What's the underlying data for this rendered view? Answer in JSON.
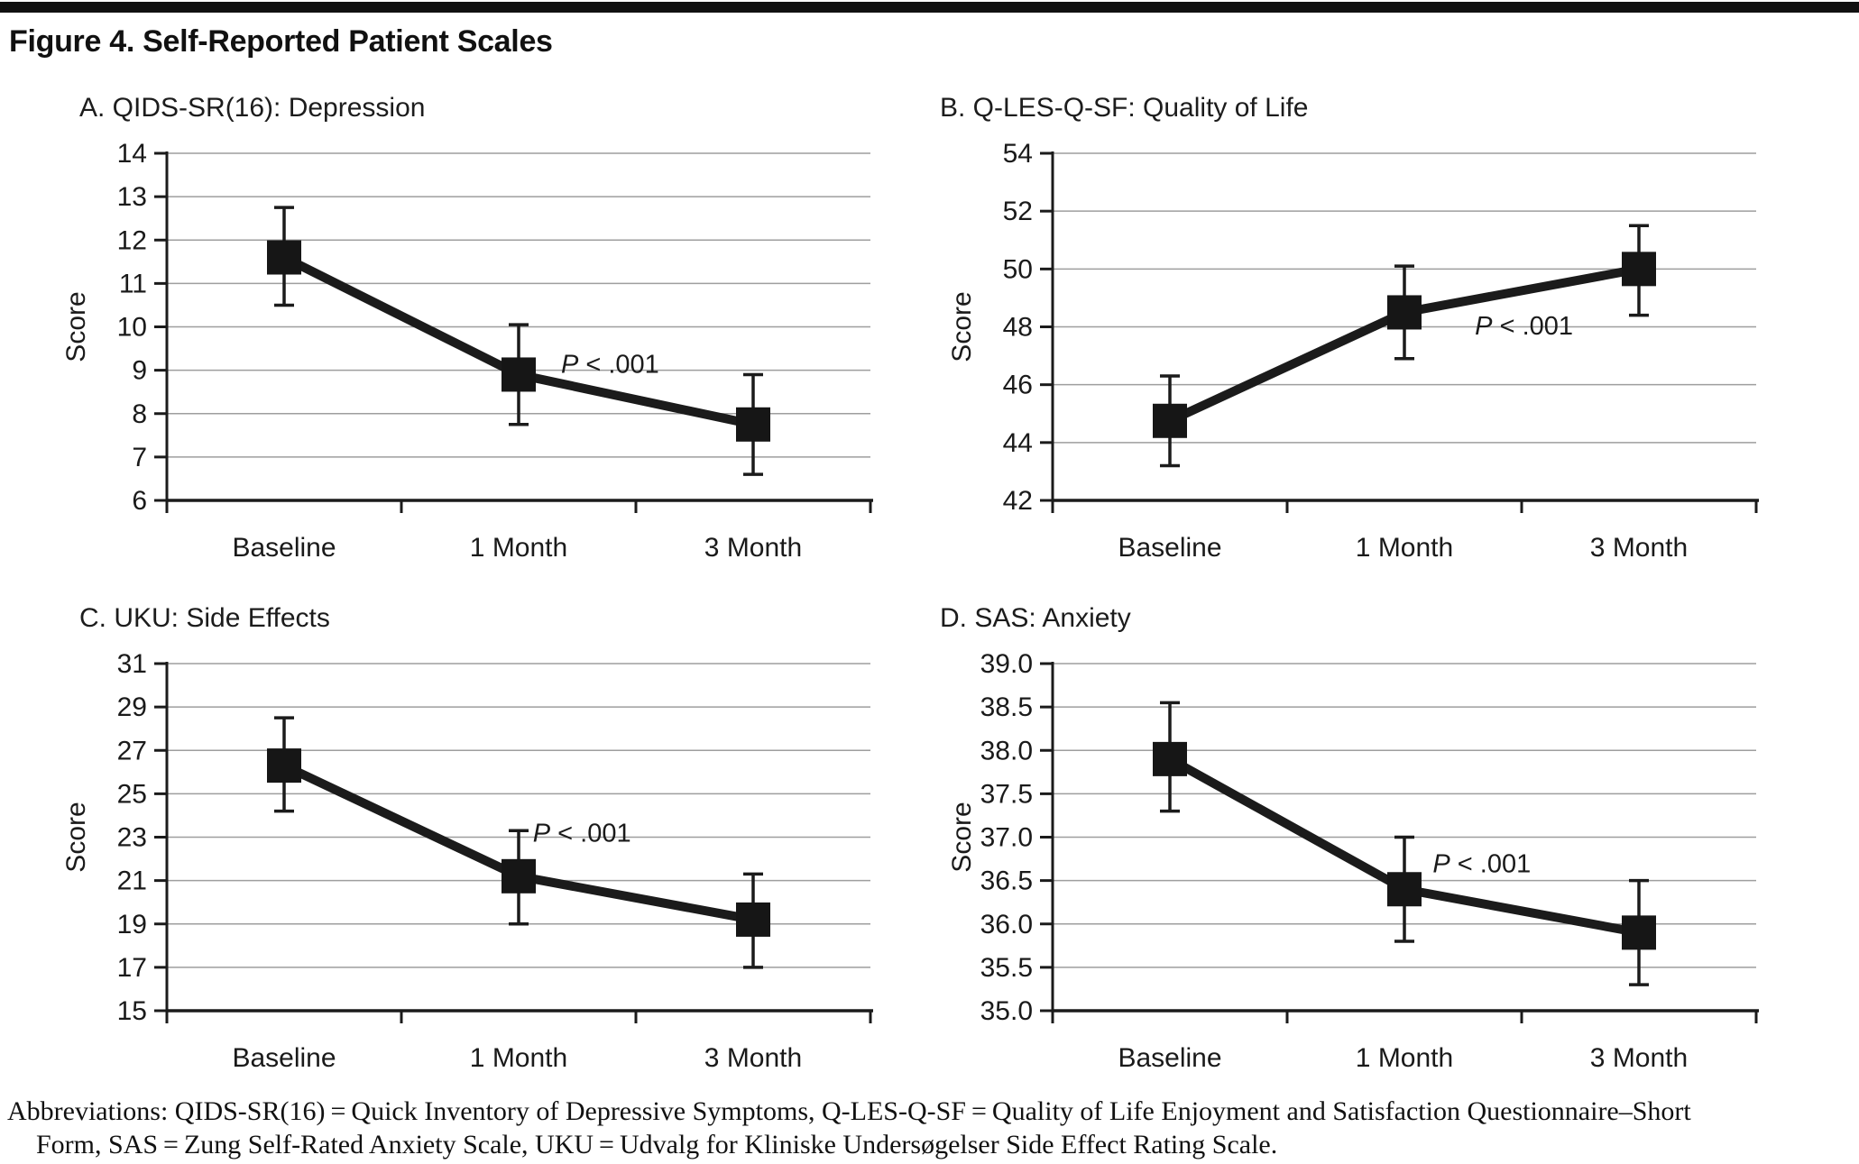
{
  "page": {
    "figure_title": "Figure 4. Self-Reported Patient Scales",
    "abbreviations_line1": "Abbreviations: QIDS-SR(16) = Quick Inventory of Depressive Symptoms, Q-LES-Q-SF = Quality of Life Enjoyment and Satisfaction Questionnaire–Short",
    "abbreviations_line2": "Form, SAS = Zung Self-Rated Anxiety Scale, UKU = Udvalg for Kliniske Undersøgelser Side Effect Rating Scale."
  },
  "colors": {
    "ink": "#1b1b1b",
    "marker": "#161616",
    "gridline": "#9e9e9e",
    "text": "#1a1a1a",
    "rule": "#111111"
  },
  "chart_data": [
    {
      "id": "A",
      "type": "line",
      "title": "A. QIDS-SR(16): Depression",
      "ylabel": "Score",
      "categories": [
        "Baseline",
        "1 Month",
        "3 Month"
      ],
      "ylim": [
        6,
        14
      ],
      "ytick_step": 1,
      "ytick_decimals": 0,
      "grid": true,
      "legend": "none",
      "marker": "black-square",
      "values": [
        11.6,
        8.9,
        7.75
      ],
      "error_low": [
        10.5,
        7.75,
        6.6
      ],
      "error_high": [
        12.75,
        10.05,
        8.9
      ],
      "annotation": {
        "text_italic": "P",
        "text_rest": " < .001",
        "x_frac": 0.63,
        "y": 9.15
      }
    },
    {
      "id": "B",
      "type": "line",
      "title": "B. Q-LES-Q-SF: Quality of Life",
      "ylabel": "Score",
      "categories": [
        "Baseline",
        "1 Month",
        "3 Month"
      ],
      "ylim": [
        42,
        54
      ],
      "ytick_step": 2,
      "ytick_decimals": 0,
      "grid": true,
      "legend": "none",
      "marker": "black-square",
      "values": [
        44.75,
        48.5,
        50.0
      ],
      "error_low": [
        43.2,
        46.9,
        48.4
      ],
      "error_high": [
        46.3,
        50.1,
        51.5
      ],
      "annotation": {
        "text_italic": "P",
        "text_rest": " < .001",
        "x_frac": 0.67,
        "y": 48.05
      }
    },
    {
      "id": "C",
      "type": "line",
      "title": "C. UKU: Side Effects",
      "ylabel": "Score",
      "categories": [
        "Baseline",
        "1 Month",
        "3 Month"
      ],
      "ylim": [
        15,
        31
      ],
      "ytick_step": 2,
      "ytick_decimals": 0,
      "grid": true,
      "legend": "none",
      "marker": "black-square",
      "values": [
        26.3,
        21.2,
        19.2
      ],
      "error_low": [
        24.2,
        19.0,
        17.0
      ],
      "error_high": [
        28.5,
        23.3,
        21.3
      ],
      "annotation": {
        "text_italic": "P",
        "text_rest": " < .001",
        "x_frac": 0.59,
        "y": 23.2
      }
    },
    {
      "id": "D",
      "type": "line",
      "title": "D. SAS: Anxiety",
      "ylabel": "Score",
      "categories": [
        "Baseline",
        "1 Month",
        "3 Month"
      ],
      "ylim": [
        35,
        39
      ],
      "ytick_step": 0.5,
      "ytick_decimals": 1,
      "grid": true,
      "legend": "none",
      "marker": "black-square",
      "values": [
        37.9,
        36.4,
        35.9
      ],
      "error_low": [
        37.3,
        35.8,
        35.3
      ],
      "error_high": [
        38.55,
        37.0,
        36.5
      ],
      "annotation": {
        "text_italic": "P",
        "text_rest": " < .001",
        "x_frac": 0.61,
        "y": 36.7
      }
    }
  ]
}
